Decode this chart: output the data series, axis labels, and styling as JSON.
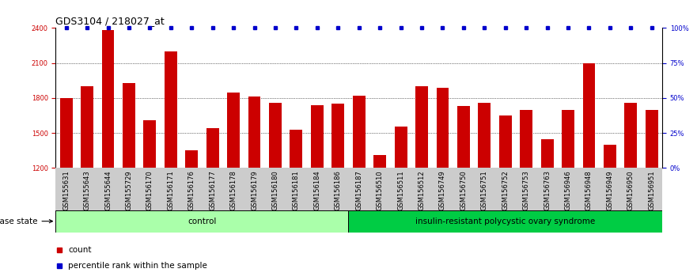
{
  "title": "GDS3104 / 218027_at",
  "samples": [
    "GSM155631",
    "GSM155643",
    "GSM155644",
    "GSM155729",
    "GSM156170",
    "GSM156171",
    "GSM156176",
    "GSM156177",
    "GSM156178",
    "GSM156179",
    "GSM156180",
    "GSM156181",
    "GSM156184",
    "GSM156186",
    "GSM156187",
    "GSM156510",
    "GSM156511",
    "GSM156512",
    "GSM156749",
    "GSM156750",
    "GSM156751",
    "GSM156752",
    "GSM156753",
    "GSM156763",
    "GSM156946",
    "GSM156948",
    "GSM156949",
    "GSM156950",
    "GSM156951"
  ],
  "counts": [
    1800,
    1900,
    2380,
    1930,
    1610,
    2200,
    1350,
    1540,
    1850,
    1810,
    1760,
    1530,
    1740,
    1750,
    1820,
    1310,
    1555,
    1900,
    1890,
    1730,
    1760,
    1650,
    1700,
    1450,
    1700,
    2100,
    1400,
    1760,
    1700
  ],
  "control_count": 14,
  "disease_count": 15,
  "control_label": "control",
  "disease_label": "insulin-resistant polycystic ovary syndrome",
  "disease_state_label": "disease state",
  "ylim_left": [
    1200,
    2400
  ],
  "ylim_right": [
    0,
    100
  ],
  "yticks_left": [
    1200,
    1500,
    1800,
    2100,
    2400
  ],
  "yticks_right": [
    0,
    25,
    50,
    75,
    100
  ],
  "bar_color": "#cc0000",
  "dot_color": "#0000cc",
  "legend_count_label": "count",
  "legend_pct_label": "percentile rank within the sample",
  "bg_color": "#ffffff",
  "tick_area_bg": "#cccccc",
  "control_bg": "#aaffaa",
  "disease_bg": "#00cc44",
  "grid_color": "#000000",
  "title_fontsize": 9,
  "tick_fontsize": 6.0,
  "label_fontsize": 8,
  "bar_width": 0.6
}
